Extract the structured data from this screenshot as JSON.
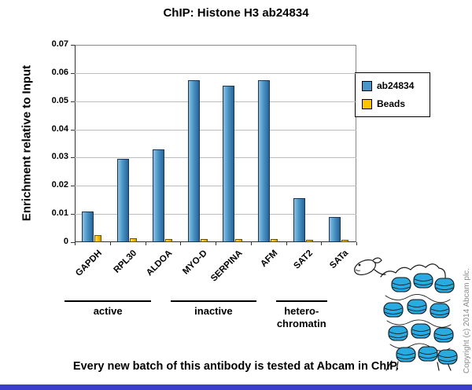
{
  "title": "ChIP: Histone H3 ab24834",
  "footer": "Every new batch of this antibody is tested at Abcam in ChIP.",
  "copyright": "Copyright (c) 2014 Abcam plc.",
  "colors": {
    "nucleosome": "#29abe2",
    "footer_bar": "#3940c4",
    "gridline": "#bdbdbd"
  },
  "chart_data": {
    "type": "bar",
    "title": "ChIP: Histone H3 ab24834",
    "categories": [
      "GAPDH",
      "RPL30",
      "ALDOA",
      "MYO-D",
      "SERPINA",
      "AFM",
      "SAT2",
      "SATa"
    ],
    "series": [
      {
        "name": "ab24834",
        "color": "#4a96c8",
        "color_light": "#8fc0de",
        "color_dark": "#2a6395",
        "border": "#16365c",
        "values": [
          0.011,
          0.0295,
          0.033,
          0.0575,
          0.0555,
          0.0575,
          0.0155,
          0.009
        ]
      },
      {
        "name": "Beads",
        "color": "#fdc500",
        "color_light": "#ffe07a",
        "color_dark": "#cf9d00",
        "border": "#6e5600",
        "values": [
          0.0025,
          0.0015,
          0.0012,
          0.0012,
          0.0012,
          0.0012,
          0.0008,
          0.0008
        ]
      }
    ],
    "xlabel": "",
    "ylabel": "Enrichment relative to Input",
    "ylim": [
      0,
      0.07
    ],
    "ytick_step": 0.01,
    "ytick_labels": [
      "0",
      "0.01",
      "0.02",
      "0.03",
      "0.04",
      "0.05",
      "0.06",
      "0.07"
    ],
    "groups": [
      {
        "label": "active",
        "span": [
          0,
          2
        ]
      },
      {
        "label": "inactive",
        "span": [
          3,
          5
        ]
      },
      {
        "label": "hetero-\nchromatin",
        "span": [
          6,
          7
        ]
      }
    ],
    "legend_position": "right",
    "grid": true
  }
}
